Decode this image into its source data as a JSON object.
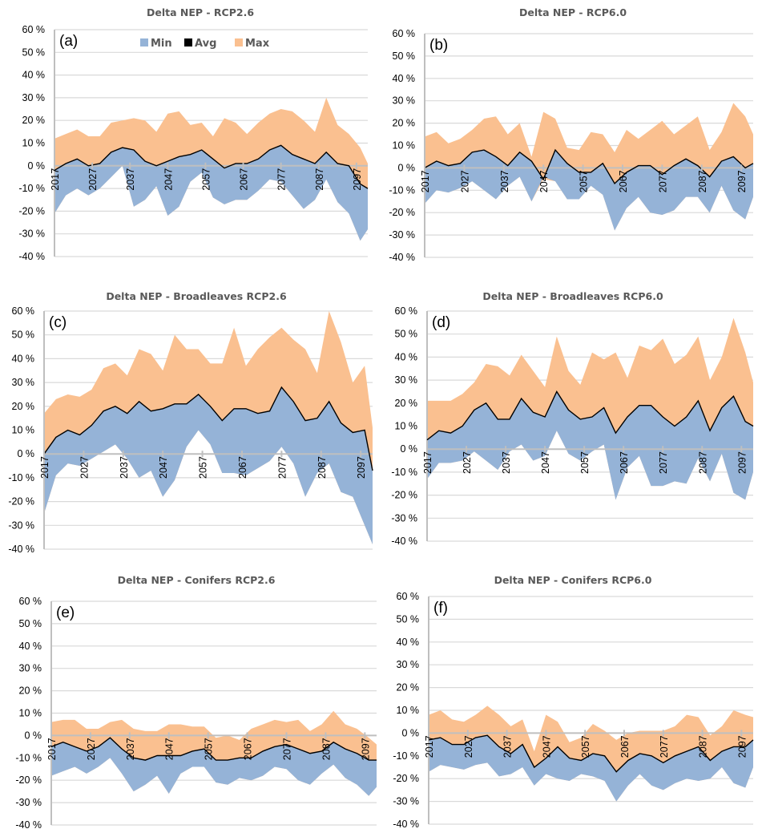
{
  "chart_data": [
    {
      "type": "area",
      "panel_label": "(a)",
      "title": "Delta NEP - RCP2.6",
      "xlabel": "",
      "ylabel": "",
      "ylim": [
        -40,
        60
      ],
      "yticks": [
        "60 %",
        "50 %",
        "40 %",
        "30 %",
        "20 %",
        "10 %",
        "0 %",
        "-10 %",
        "-20 %",
        "-30 %",
        "-40 %"
      ],
      "xticks": [
        "2017",
        "2027",
        "2037",
        "2047",
        "2057",
        "2067",
        "2077",
        "2087",
        "2097"
      ],
      "grid": true,
      "legend": {
        "position": "top-center",
        "entries": [
          "Min",
          "Avg",
          "Max"
        ]
      },
      "x": [
        2017,
        2020,
        2023,
        2026,
        2029,
        2032,
        2035,
        2038,
        2041,
        2044,
        2047,
        2050,
        2053,
        2056,
        2059,
        2062,
        2065,
        2068,
        2071,
        2074,
        2077,
        2080,
        2083,
        2086,
        2089,
        2092,
        2095,
        2098,
        2100
      ],
      "series": [
        {
          "name": "Min",
          "values": [
            -21,
            -13,
            -10,
            -13,
            -10,
            -5,
            0,
            -18,
            -15,
            -9,
            -22,
            -18,
            -7,
            -3,
            -14,
            -17,
            -15,
            -15,
            -11,
            -6,
            -7,
            -13,
            -19,
            -15,
            -6,
            -16,
            -21,
            -33,
            -28
          ]
        },
        {
          "name": "Avg",
          "values": [
            -2,
            1,
            3,
            0,
            1,
            6,
            8,
            7,
            2,
            0,
            2,
            4,
            5,
            7,
            3,
            -1,
            1,
            1,
            3,
            7,
            9,
            5,
            3,
            1,
            6,
            1,
            0,
            -8,
            -10
          ]
        },
        {
          "name": "Max",
          "values": [
            12,
            14,
            16,
            13,
            13,
            19,
            20,
            21,
            20,
            15,
            23,
            24,
            18,
            19,
            13,
            21,
            19,
            14,
            19,
            23,
            25,
            24,
            20,
            15,
            30,
            18,
            14,
            8,
            1
          ]
        }
      ]
    },
    {
      "type": "area",
      "panel_label": "(b)",
      "title": "Delta NEP - RCP6.0",
      "xlabel": "",
      "ylabel": "",
      "ylim": [
        -40,
        60
      ],
      "yticks": [
        "60 %",
        "50 %",
        "40 %",
        "30 %",
        "20 %",
        "10 %",
        "0 %",
        "-10 %",
        "-20 %",
        "-30 %",
        "-40 %"
      ],
      "xticks": [
        "2017",
        "2027",
        "2037",
        "2047",
        "2057",
        "2067",
        "2077",
        "2087",
        "2097"
      ],
      "grid": true,
      "x": [
        2017,
        2020,
        2023,
        2026,
        2029,
        2032,
        2035,
        2038,
        2041,
        2044,
        2047,
        2050,
        2053,
        2056,
        2059,
        2062,
        2065,
        2068,
        2071,
        2074,
        2077,
        2080,
        2083,
        2086,
        2089,
        2092,
        2095,
        2098,
        2100
      ],
      "series": [
        {
          "name": "Min",
          "values": [
            -16,
            -10,
            -11,
            -9,
            -6,
            -10,
            -14,
            -8,
            -4,
            -15,
            -4,
            -6,
            -14,
            -14,
            -8,
            -12,
            -28,
            -18,
            -13,
            -20,
            -21,
            -19,
            -13,
            -13,
            -20,
            -8,
            -19,
            -23,
            -13
          ]
        },
        {
          "name": "Avg",
          "values": [
            0,
            3,
            1,
            2,
            7,
            8,
            5,
            1,
            7,
            3,
            -5,
            8,
            2,
            -2,
            -2,
            2,
            -7,
            -2,
            1,
            1,
            -3,
            1,
            4,
            1,
            -4,
            3,
            5,
            0,
            2
          ]
        },
        {
          "name": "Max",
          "values": [
            14,
            16,
            11,
            13,
            17,
            22,
            23,
            15,
            20,
            5,
            25,
            22,
            9,
            8,
            16,
            15,
            7,
            17,
            13,
            17,
            21,
            15,
            19,
            23,
            8,
            16,
            29,
            23,
            15
          ]
        }
      ]
    },
    {
      "type": "area",
      "panel_label": "(c)",
      "title": "Delta NEP - Broadleaves RCP2.6",
      "xlabel": "",
      "ylabel": "",
      "ylim": [
        -40,
        60
      ],
      "yticks": [
        "60 %",
        "50 %",
        "40 %",
        "30 %",
        "20 %",
        "10 %",
        "0 %",
        "-10 %",
        "-20 %",
        "-30 %",
        "-40 %"
      ],
      "xticks": [
        "2017",
        "2027",
        "2037",
        "2047",
        "2057",
        "2067",
        "2077",
        "2087",
        "2097"
      ],
      "grid": true,
      "x": [
        2017,
        2020,
        2023,
        2026,
        2029,
        2032,
        2035,
        2038,
        2041,
        2044,
        2047,
        2050,
        2053,
        2056,
        2059,
        2062,
        2065,
        2068,
        2071,
        2074,
        2077,
        2080,
        2083,
        2086,
        2089,
        2092,
        2095,
        2098,
        2100
      ],
      "series": [
        {
          "name": "Min",
          "values": [
            -25,
            -9,
            -4,
            -5,
            -2,
            1,
            4,
            -2,
            -10,
            -7,
            -18,
            -11,
            3,
            10,
            4,
            -8,
            -8,
            -9,
            -6,
            -3,
            3,
            -4,
            -18,
            -8,
            -4,
            -16,
            -18,
            -30,
            -38
          ]
        },
        {
          "name": "Avg",
          "values": [
            0,
            7,
            10,
            8,
            12,
            18,
            20,
            17,
            22,
            18,
            19,
            21,
            21,
            25,
            20,
            14,
            19,
            19,
            17,
            18,
            28,
            22,
            14,
            15,
            22,
            13,
            9,
            10,
            -7
          ]
        },
        {
          "name": "Max",
          "values": [
            17,
            23,
            25,
            24,
            27,
            36,
            38,
            33,
            44,
            42,
            35,
            50,
            44,
            44,
            38,
            38,
            53,
            37,
            44,
            49,
            53,
            48,
            44,
            34,
            60,
            47,
            30,
            37,
            11
          ]
        }
      ]
    },
    {
      "type": "area",
      "panel_label": "(d)",
      "title": "Delta NEP - Broadleaves RCP6.0",
      "xlabel": "",
      "ylabel": "",
      "ylim": [
        -40,
        60
      ],
      "yticks": [
        "60 %",
        "50 %",
        "40 %",
        "30 %",
        "20 %",
        "10 %",
        "0 %",
        "-10 %",
        "-20 %",
        "-30 %",
        "-40 %"
      ],
      "xticks": [
        "2017",
        "2027",
        "2037",
        "2047",
        "2057",
        "2067",
        "2077",
        "2087",
        "2097"
      ],
      "grid": true,
      "x": [
        2017,
        2020,
        2023,
        2026,
        2029,
        2032,
        2035,
        2038,
        2041,
        2044,
        2047,
        2050,
        2053,
        2056,
        2059,
        2062,
        2065,
        2068,
        2071,
        2074,
        2077,
        2080,
        2083,
        2086,
        2089,
        2092,
        2095,
        2098,
        2100
      ],
      "series": [
        {
          "name": "Min",
          "values": [
            -13,
            -6,
            -6,
            -5,
            -1,
            -5,
            -9,
            -1,
            2,
            -5,
            -3,
            8,
            -2,
            -5,
            -1,
            2,
            -22,
            -8,
            -3,
            -16,
            -16,
            -14,
            -15,
            -4,
            -14,
            -2,
            -19,
            -22,
            -10
          ]
        },
        {
          "name": "Avg",
          "values": [
            4,
            8,
            7,
            10,
            17,
            20,
            13,
            13,
            22,
            16,
            14,
            25,
            17,
            13,
            14,
            18,
            7,
            14,
            19,
            19,
            14,
            10,
            14,
            21,
            8,
            18,
            23,
            12,
            10
          ]
        },
        {
          "name": "Max",
          "values": [
            21,
            21,
            21,
            24,
            29,
            37,
            36,
            32,
            41,
            34,
            27,
            49,
            34,
            28,
            42,
            39,
            42,
            31,
            45,
            43,
            48,
            37,
            41,
            49,
            30,
            40,
            57,
            42,
            29
          ]
        }
      ]
    },
    {
      "type": "area",
      "panel_label": "(e)",
      "title": "Delta NEP - Conifers RCP2.6",
      "xlabel": "",
      "ylabel": "",
      "ylim": [
        -40,
        60
      ],
      "yticks": [
        "60 %",
        "50 %",
        "40 %",
        "30 %",
        "20 %",
        "10 %",
        "0 %",
        "-10 %",
        "-20 %",
        "-30 %",
        "-40 %"
      ],
      "xticks": [
        "2017",
        "2027",
        "2037",
        "2047",
        "2057",
        "2067",
        "2077",
        "2087",
        "2097"
      ],
      "grid": true,
      "x": [
        2017,
        2020,
        2023,
        2026,
        2029,
        2032,
        2035,
        2038,
        2041,
        2044,
        2047,
        2050,
        2053,
        2056,
        2059,
        2062,
        2065,
        2068,
        2071,
        2074,
        2077,
        2080,
        2083,
        2086,
        2089,
        2092,
        2095,
        2098,
        2100
      ],
      "series": [
        {
          "name": "Min",
          "values": [
            -18,
            -16,
            -14,
            -17,
            -14,
            -10,
            -17,
            -25,
            -22,
            -18,
            -26,
            -17,
            -14,
            -14,
            -21,
            -22,
            -19,
            -20,
            -18,
            -14,
            -15,
            -20,
            -22,
            -17,
            -13,
            -19,
            -22,
            -27,
            -23
          ]
        },
        {
          "name": "Avg",
          "values": [
            -5,
            -3,
            -5,
            -7,
            -5,
            -1,
            -6,
            -10,
            -11,
            -9,
            -9,
            -9,
            -7,
            -6,
            -11,
            -11,
            -10,
            -10,
            -7,
            -5,
            -4,
            -6,
            -8,
            -7,
            -3,
            -6,
            -8,
            -11,
            -11
          ]
        },
        {
          "name": "Max",
          "values": [
            6,
            7,
            7,
            3,
            3,
            6,
            7,
            3,
            2,
            2,
            5,
            5,
            4,
            4,
            -1,
            0,
            -2,
            3,
            5,
            7,
            6,
            7,
            2,
            5,
            11,
            5,
            3,
            -1,
            -4
          ]
        }
      ]
    },
    {
      "type": "area",
      "panel_label": "(f)",
      "title": "Delta NEP - Conifers RCP6.0",
      "xlabel": "",
      "ylabel": "",
      "ylim": [
        -40,
        60
      ],
      "yticks": [
        "60 %",
        "50 %",
        "40 %",
        "30 %",
        "20 %",
        "10 %",
        "0 %",
        "-10 %",
        "-20 %",
        "-30 %",
        "-40 %"
      ],
      "xticks": [
        "2017",
        "2027",
        "2037",
        "2047",
        "2057",
        "2067",
        "2077",
        "2087",
        "2097"
      ],
      "grid": true,
      "x": [
        2017,
        2020,
        2023,
        2026,
        2029,
        2032,
        2035,
        2038,
        2041,
        2044,
        2047,
        2050,
        2053,
        2056,
        2059,
        2062,
        2065,
        2068,
        2071,
        2074,
        2077,
        2080,
        2083,
        2086,
        2089,
        2092,
        2095,
        2098,
        2100
      ],
      "series": [
        {
          "name": "Min",
          "values": [
            -17,
            -14,
            -15,
            -16,
            -14,
            -13,
            -19,
            -18,
            -15,
            -23,
            -18,
            -20,
            -21,
            -18,
            -19,
            -21,
            -30,
            -23,
            -18,
            -23,
            -25,
            -22,
            -20,
            -21,
            -20,
            -15,
            -22,
            -24,
            -15
          ]
        },
        {
          "name": "Avg",
          "values": [
            -3,
            -2,
            -5,
            -5,
            -2,
            -1,
            -6,
            -9,
            -5,
            -15,
            -11,
            -6,
            -11,
            -12,
            -9,
            -10,
            -17,
            -12,
            -9,
            -10,
            -13,
            -10,
            -8,
            -6,
            -12,
            -8,
            -6,
            -6,
            -3
          ]
        },
        {
          "name": "Max",
          "values": [
            8,
            10,
            6,
            5,
            8,
            12,
            8,
            3,
            6,
            -8,
            8,
            5,
            -4,
            -2,
            4,
            1,
            -3,
            0,
            1,
            1,
            1,
            3,
            8,
            7,
            -1,
            3,
            10,
            8,
            7
          ]
        }
      ]
    }
  ],
  "legend": {
    "entries": [
      {
        "name": "Min",
        "color": "#95B3D7"
      },
      {
        "name": "Avg",
        "color": "#000000"
      },
      {
        "name": "Max",
        "color": "#FAC090"
      }
    ]
  },
  "colors": {
    "min": "#95B3D7",
    "max": "#FAC090",
    "avg": "#000000",
    "grid": "#D9D9D9",
    "axis": "#BFBFBF",
    "title": "#595959"
  }
}
